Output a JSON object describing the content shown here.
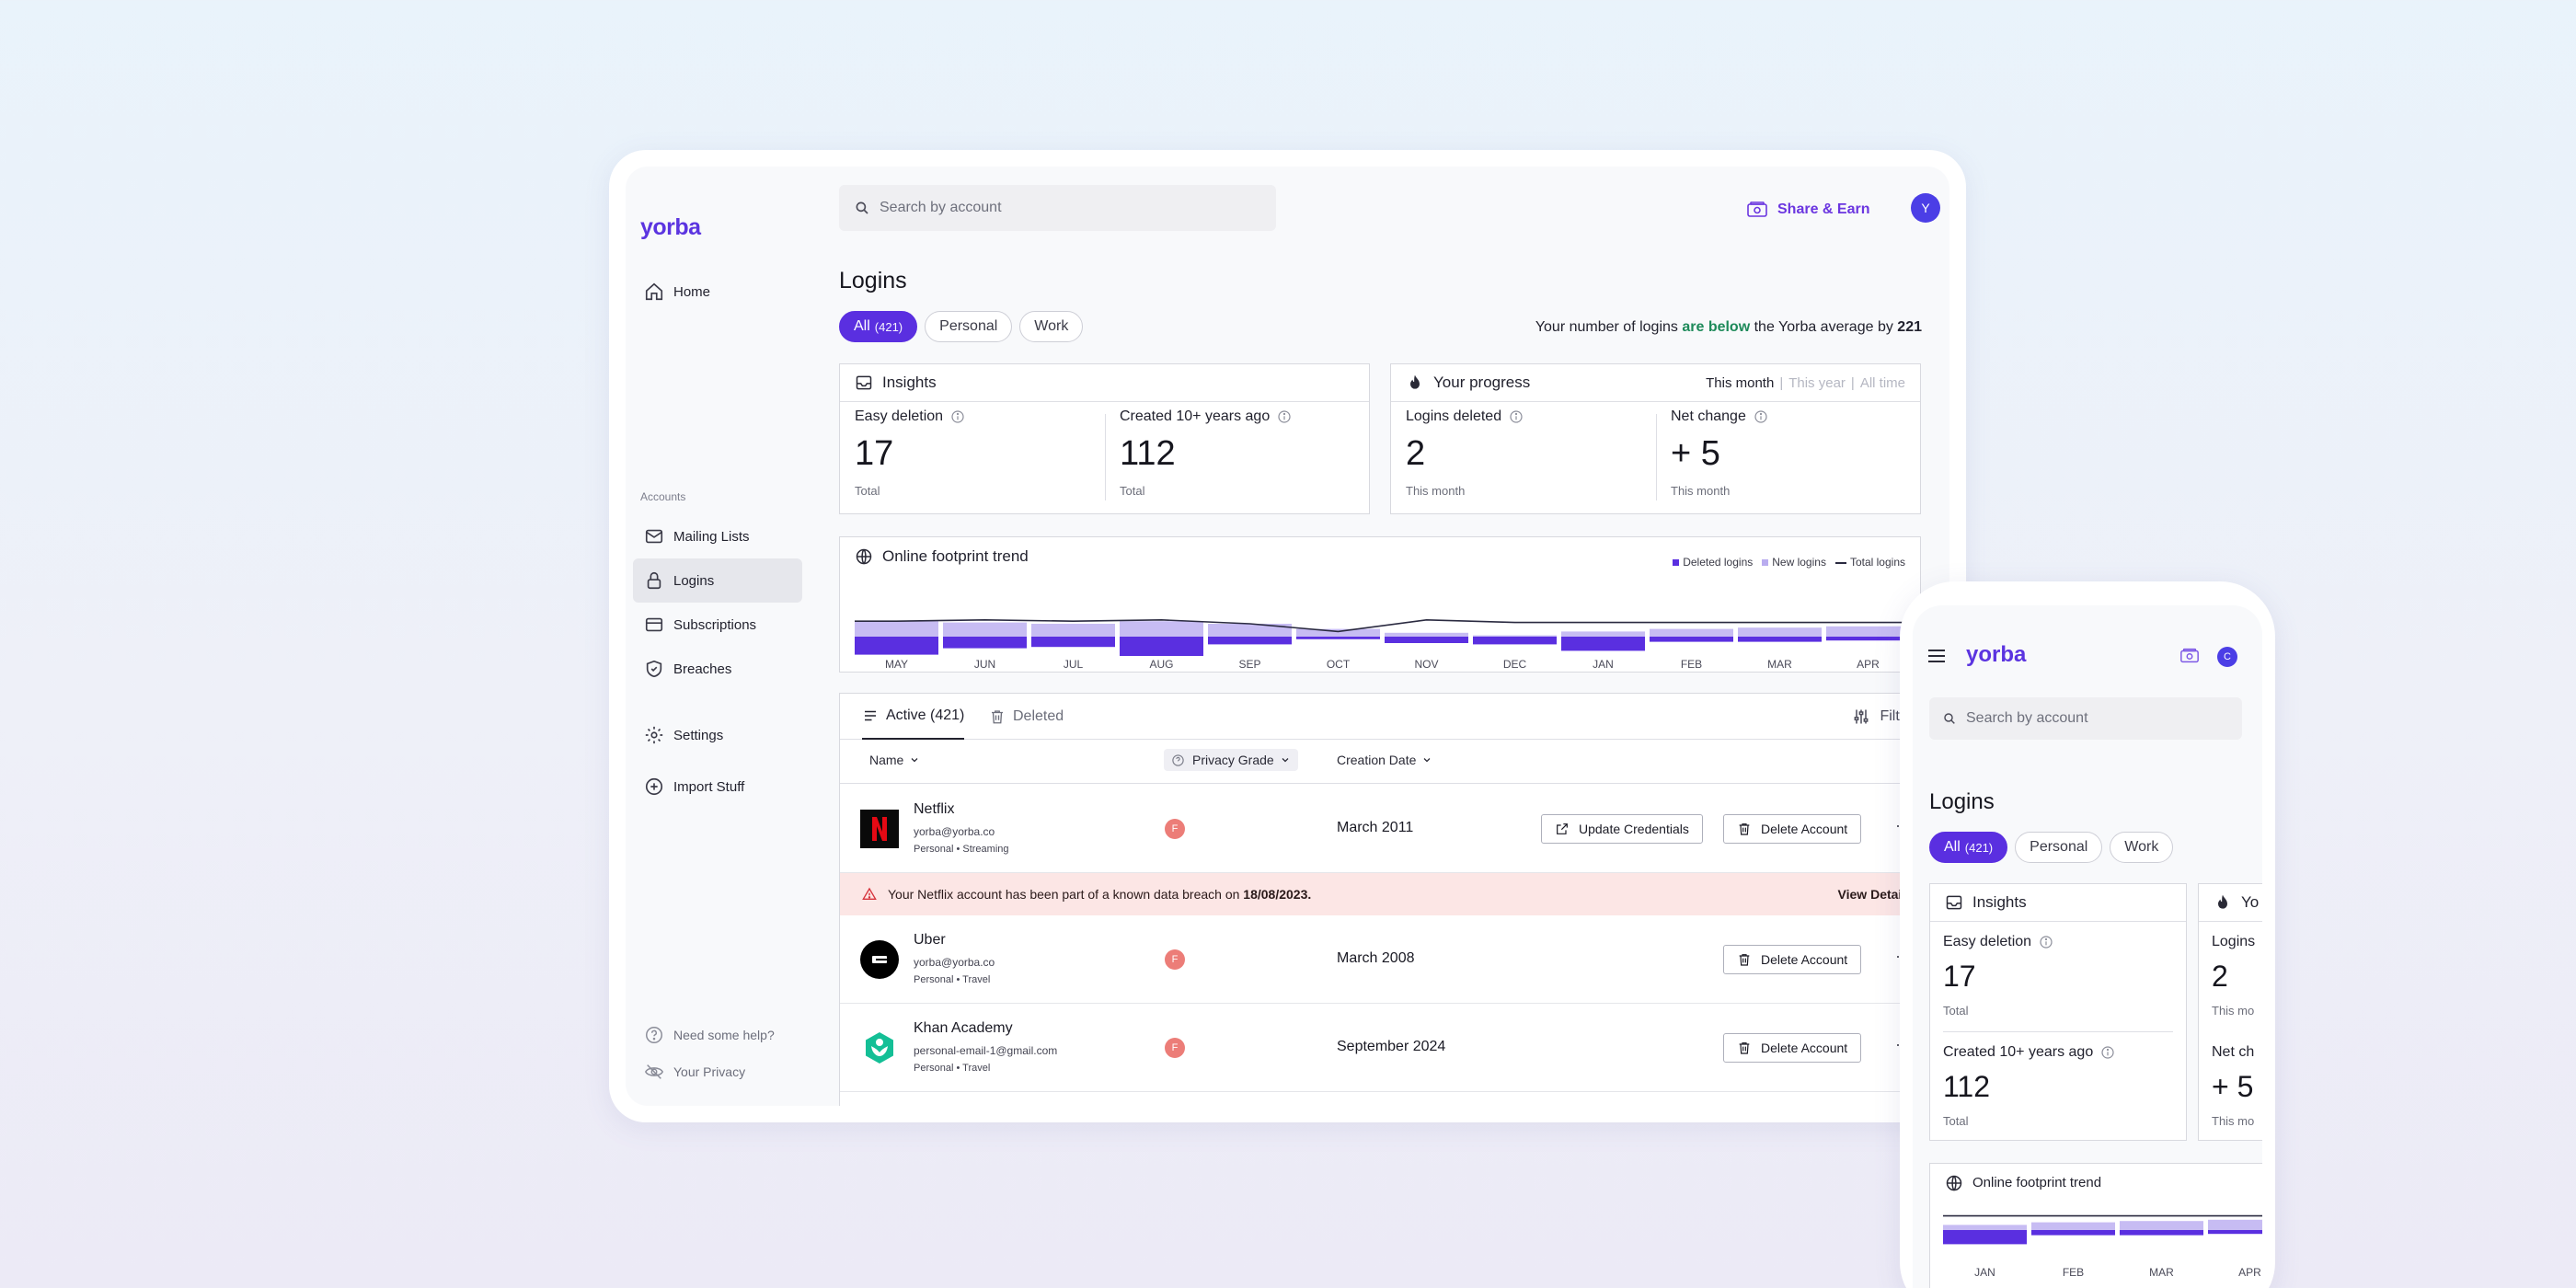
{
  "desktop": {
    "brand": "yorba",
    "search_placeholder": "Search by account",
    "share_label": "Share & Earn",
    "avatar_initial": "Y",
    "nav": {
      "home": "Home",
      "section": "Accounts",
      "mailing_lists": "Mailing Lists",
      "logins": "Logins",
      "subscriptions": "Subscriptions",
      "breaches": "Breaches",
      "settings": "Settings",
      "import": "Import Stuff",
      "help": "Need some help?",
      "privacy": "Your Privacy"
    },
    "page_title": "Logins",
    "filters": {
      "all": "All",
      "all_count": "(421)",
      "personal": "Personal",
      "work": "Work"
    },
    "average_note": {
      "prefix": "Your number of logins",
      "highlight": "are below",
      "middle": "the Yorba average by",
      "value": "221"
    },
    "insights": {
      "title": "Insights",
      "easy_label": "Easy deletion",
      "easy_value": "17",
      "easy_sub": "Total",
      "old_label": "Created 10+ years ago",
      "old_value": "112",
      "old_sub": "Total"
    },
    "progress": {
      "title": "Your progress",
      "period_month": "This month",
      "period_year": "This year",
      "period_all": "All time",
      "deleted_label": "Logins deleted",
      "deleted_value": "2",
      "deleted_sub": "This month",
      "net_label": "Net change",
      "net_value": "+ 5",
      "net_sub": "This month"
    },
    "trend": {
      "title": "Online footprint trend",
      "legend_deleted": "Deleted logins",
      "legend_new": "New logins",
      "legend_total": "Total logins"
    },
    "table": {
      "tab_active": "Active (421)",
      "tab_deleted": "Deleted",
      "filters": "Filters",
      "col_name": "Name",
      "col_grade": "Privacy Grade",
      "col_date": "Creation Date",
      "update_label": "Update Credentials",
      "delete_label": "Delete Account",
      "more": "···",
      "rows": [
        {
          "name": "Netflix",
          "email": "yorba@yorba.co",
          "tags": "Personal  •  Streaming",
          "grade": "F",
          "date": "March 2011"
        },
        {
          "name": "Uber",
          "email": "yorba@yorba.co",
          "tags": "Personal  •  Travel",
          "grade": "F",
          "date": "March 2008"
        },
        {
          "name": "Khan Academy",
          "email": "personal-email-1@gmail.com",
          "tags": "Personal  •  Travel",
          "grade": "F",
          "date": "September 2024"
        }
      ],
      "alert_prefix": "Your Netflix account has been part of a known data breach on",
      "alert_date": "18/08/2023.",
      "alert_link": "View Details"
    }
  },
  "mobile": {
    "brand": "yorba",
    "avatar_initial": "C",
    "search_placeholder": "Search by account",
    "page_title": "Logins",
    "filters": {
      "all": "All",
      "all_count": "(421)",
      "personal": "Personal",
      "work": "Work"
    },
    "insights": {
      "title": "Insights",
      "easy_label": "Easy deletion",
      "easy_value": "17",
      "easy_sub": "Total",
      "old_label": "Created 10+ years ago",
      "old_value": "112",
      "old_sub": "Total"
    },
    "progress": {
      "title": "Yo",
      "deleted_label": "Logins",
      "deleted_value": "2",
      "deleted_sub": "This mo",
      "net_label": "Net ch",
      "net_value": "+ 5",
      "net_sub": "This mo"
    },
    "trend_title": "Online footprint trend",
    "trend_months": [
      "JAN",
      "FEB",
      "MAR",
      "APR"
    ]
  },
  "colors": {
    "brand": "#5b34e0",
    "deleted": "#5a2fe0",
    "new": "#c7bcf3",
    "total_line": "#2a2a40",
    "grade_f": "#ec7d78",
    "alert_bg": "#fce6e5",
    "positive": "#1e8a5a"
  },
  "chart_data": {
    "type": "bar",
    "categories": [
      "MAY",
      "JUN",
      "JUL",
      "AUG",
      "SEP",
      "OCT",
      "NOV",
      "DEC",
      "JAN",
      "FEB",
      "MAR",
      "APR"
    ],
    "series": [
      {
        "name": "Deleted logins",
        "values": [
          14,
          9,
          8,
          15,
          6,
          2,
          5,
          6,
          11,
          4,
          4,
          3
        ]
      },
      {
        "name": "New logins",
        "values": [
          12,
          11,
          10,
          12,
          10,
          6,
          3,
          1,
          4,
          6,
          7,
          8
        ]
      },
      {
        "name": "Total logins",
        "values": [
          12,
          13,
          12,
          13,
          10,
          4,
          13,
          11,
          11,
          11,
          11,
          11
        ]
      }
    ],
    "legend": "top-right",
    "grid": false
  }
}
